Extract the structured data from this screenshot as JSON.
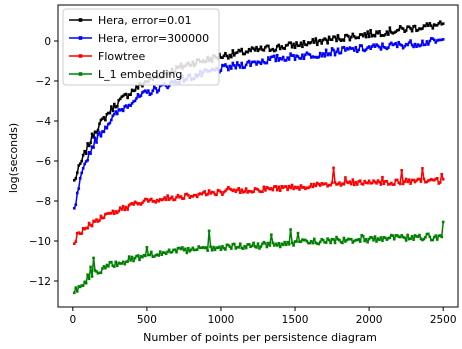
{
  "chart_data": {
    "type": "line",
    "xlabel": "Number of points per persistence diagram",
    "ylabel": "log(seconds)",
    "xlim": [
      -100,
      2600
    ],
    "ylim": [
      -13.3,
      1.8
    ],
    "xticks": [
      0,
      500,
      1000,
      1500,
      2000,
      2500
    ],
    "yticks": [
      -12,
      -10,
      -8,
      -6,
      -4,
      -2,
      0
    ],
    "grid": false,
    "legend_position": "top-left",
    "series": [
      {
        "name": "Hera, error=0.01",
        "color": "#000000",
        "points": [
          [
            10,
            -7.0
          ],
          [
            50,
            -6.2
          ],
          [
            100,
            -5.3
          ],
          [
            150,
            -4.5
          ],
          [
            200,
            -4.0
          ],
          [
            250,
            -3.5
          ],
          [
            300,
            -3.1
          ],
          [
            400,
            -2.5
          ],
          [
            500,
            -2.0
          ],
          [
            600,
            -1.7
          ],
          [
            700,
            -1.4
          ],
          [
            800,
            -1.1
          ],
          [
            900,
            -0.95
          ],
          [
            1000,
            -0.75
          ],
          [
            1200,
            -0.5
          ],
          [
            1400,
            -0.3
          ],
          [
            1600,
            -0.1
          ],
          [
            1800,
            0.15
          ],
          [
            2000,
            0.35
          ],
          [
            2200,
            0.55
          ],
          [
            2400,
            0.75
          ],
          [
            2500,
            0.8
          ]
        ]
      },
      {
        "name": "Hera, error=300000",
        "color": "#0000ff",
        "points": [
          [
            10,
            -8.5
          ],
          [
            50,
            -7.0
          ],
          [
            100,
            -5.8
          ],
          [
            150,
            -5.0
          ],
          [
            200,
            -4.5
          ],
          [
            250,
            -4.0
          ],
          [
            300,
            -3.6
          ],
          [
            400,
            -3.0
          ],
          [
            500,
            -2.6
          ],
          [
            600,
            -2.3
          ],
          [
            700,
            -2.0
          ],
          [
            800,
            -1.8
          ],
          [
            900,
            -1.6
          ],
          [
            1000,
            -1.4
          ],
          [
            1200,
            -1.1
          ],
          [
            1400,
            -0.85
          ],
          [
            1600,
            -0.7
          ],
          [
            1800,
            -0.5
          ],
          [
            2000,
            -0.35
          ],
          [
            2200,
            -0.2
          ],
          [
            2400,
            -0.05
          ],
          [
            2500,
            0.0
          ]
        ]
      },
      {
        "name": "Flowtree",
        "color": "#ff0000",
        "points": [
          [
            10,
            -10.0
          ],
          [
            50,
            -9.6
          ],
          [
            100,
            -9.3
          ],
          [
            150,
            -9.0
          ],
          [
            200,
            -8.8
          ],
          [
            250,
            -8.6
          ],
          [
            300,
            -8.5
          ],
          [
            400,
            -8.2
          ],
          [
            500,
            -8.0
          ],
          [
            600,
            -7.9
          ],
          [
            700,
            -7.8
          ],
          [
            800,
            -7.7
          ],
          [
            900,
            -7.6
          ],
          [
            1000,
            -7.55
          ],
          [
            1200,
            -7.45
          ],
          [
            1400,
            -7.35
          ],
          [
            1600,
            -7.25
          ],
          [
            1800,
            -7.15
          ],
          [
            2000,
            -7.1
          ],
          [
            2200,
            -7.05
          ],
          [
            2400,
            -7.0
          ],
          [
            2500,
            -7.0
          ]
        ]
      },
      {
        "name": "L_1 embedding",
        "color": "#008000",
        "points": [
          [
            10,
            -12.5
          ],
          [
            50,
            -12.3
          ],
          [
            100,
            -11.9
          ],
          [
            150,
            -11.6
          ],
          [
            200,
            -11.4
          ],
          [
            250,
            -11.2
          ],
          [
            300,
            -11.1
          ],
          [
            400,
            -10.9
          ],
          [
            500,
            -10.7
          ],
          [
            600,
            -10.6
          ],
          [
            700,
            -10.5
          ],
          [
            800,
            -10.45
          ],
          [
            900,
            -10.4
          ],
          [
            1000,
            -10.35
          ],
          [
            1200,
            -10.25
          ],
          [
            1400,
            -10.15
          ],
          [
            1600,
            -10.05
          ],
          [
            1800,
            -9.95
          ],
          [
            2000,
            -9.9
          ],
          [
            2200,
            -9.85
          ],
          [
            2400,
            -9.8
          ],
          [
            2500,
            -9.8
          ]
        ]
      }
    ]
  }
}
